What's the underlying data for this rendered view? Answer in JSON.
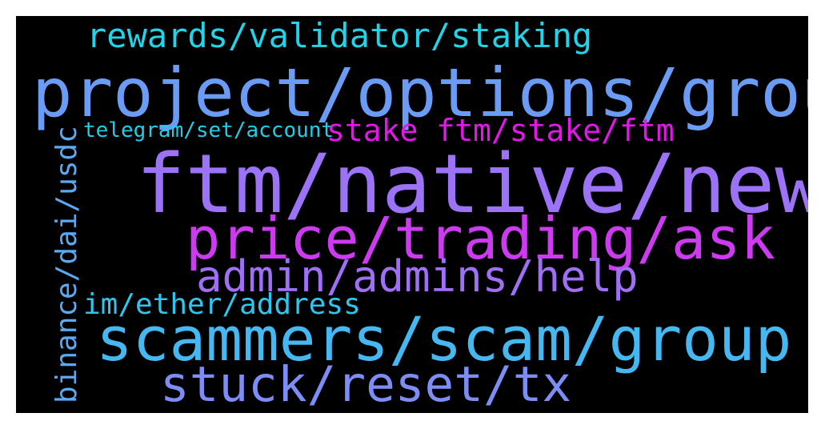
{
  "word_cloud": {
    "background_color": "#000000",
    "words": [
      {
        "id": "rewards",
        "text": "rewards/validator/staking",
        "color": "#21d4ea"
      },
      {
        "id": "project",
        "text": "project/options/group",
        "color": "#6b9cf5"
      },
      {
        "id": "telegram",
        "text": "telegram/set/account",
        "color": "#22cde8"
      },
      {
        "id": "stake",
        "text": "stake ftm/stake/ftm",
        "color": "#e317ea"
      },
      {
        "id": "ftm",
        "text": "ftm/native/new",
        "color": "#9c72f6"
      },
      {
        "id": "price",
        "text": "price/trading/ask",
        "color": "#cd3bf0"
      },
      {
        "id": "admin",
        "text": "admin/admins/help",
        "color": "#9f6ff5"
      },
      {
        "id": "im",
        "text": "im/ether/address",
        "color": "#2ec6ee"
      },
      {
        "id": "scammers",
        "text": "scammers/scam/group",
        "color": "#45b7f1"
      },
      {
        "id": "stuck",
        "text": "stuck/reset/tx",
        "color": "#7c8ef5"
      },
      {
        "id": "binance",
        "text": "binance/dai/usdc",
        "color": "#5aa9f2"
      }
    ]
  }
}
